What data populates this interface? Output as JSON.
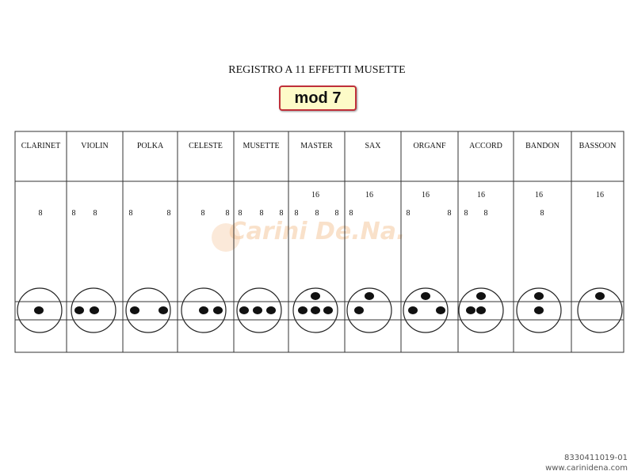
{
  "title": "REGISTRO A 11 EFFETTI MUSETTE",
  "model_badge": "mod 7",
  "watermark_logo": "Carini De.Na.",
  "columns": [
    {
      "name": "CLARINET",
      "sixteen": "",
      "eights": [
        "8"
      ],
      "dots": {
        "top": false,
        "bottom": 1
      }
    },
    {
      "name": "VIOLIN",
      "sixteen": "",
      "eights": [
        "8",
        "8"
      ],
      "dots": {
        "top": false,
        "bottom": 2
      }
    },
    {
      "name": "POLKA",
      "sixteen": "",
      "eights": [
        "8",
        "8"
      ],
      "dots": {
        "top": false,
        "bottom": 2
      }
    },
    {
      "name": "CELESTE",
      "sixteen": "",
      "eights": [
        "8",
        "8"
      ],
      "dots": {
        "top": false,
        "bottom": 2
      }
    },
    {
      "name": "MUSETTE",
      "sixteen": "",
      "eights": [
        "8",
        "8",
        "8"
      ],
      "dots": {
        "top": false,
        "bottom": 3
      }
    },
    {
      "name": "MASTER",
      "sixteen": "16",
      "eights": [
        "8",
        "8",
        "8"
      ],
      "dots": {
        "top": true,
        "bottom": 3
      }
    },
    {
      "name": "SAX",
      "sixteen": "16",
      "eights": [
        "8"
      ],
      "dots": {
        "top": true,
        "bottom": 1
      }
    },
    {
      "name": "ORGANF",
      "sixteen": "16",
      "eights": [
        "8",
        "8"
      ],
      "dots": {
        "top": true,
        "bottom": 2
      }
    },
    {
      "name": "ACCORD",
      "sixteen": "16",
      "eights": [
        "8",
        "8"
      ],
      "dots": {
        "top": true,
        "bottom": 2
      }
    },
    {
      "name": "BANDON",
      "sixteen": "16",
      "eights": [
        "8"
      ],
      "dots": {
        "top": true,
        "bottom": 1
      }
    },
    {
      "name": "BASSOON",
      "sixteen": "16",
      "eights": [],
      "dots": {
        "top": true,
        "bottom": 0
      }
    }
  ],
  "footer": {
    "code": "8330411019-01",
    "website": "www.carinidena.com"
  },
  "colors": {
    "badge_border": "#c0303a",
    "badge_fill": "#fdfbc8",
    "watermark": "#f5c9a0"
  }
}
